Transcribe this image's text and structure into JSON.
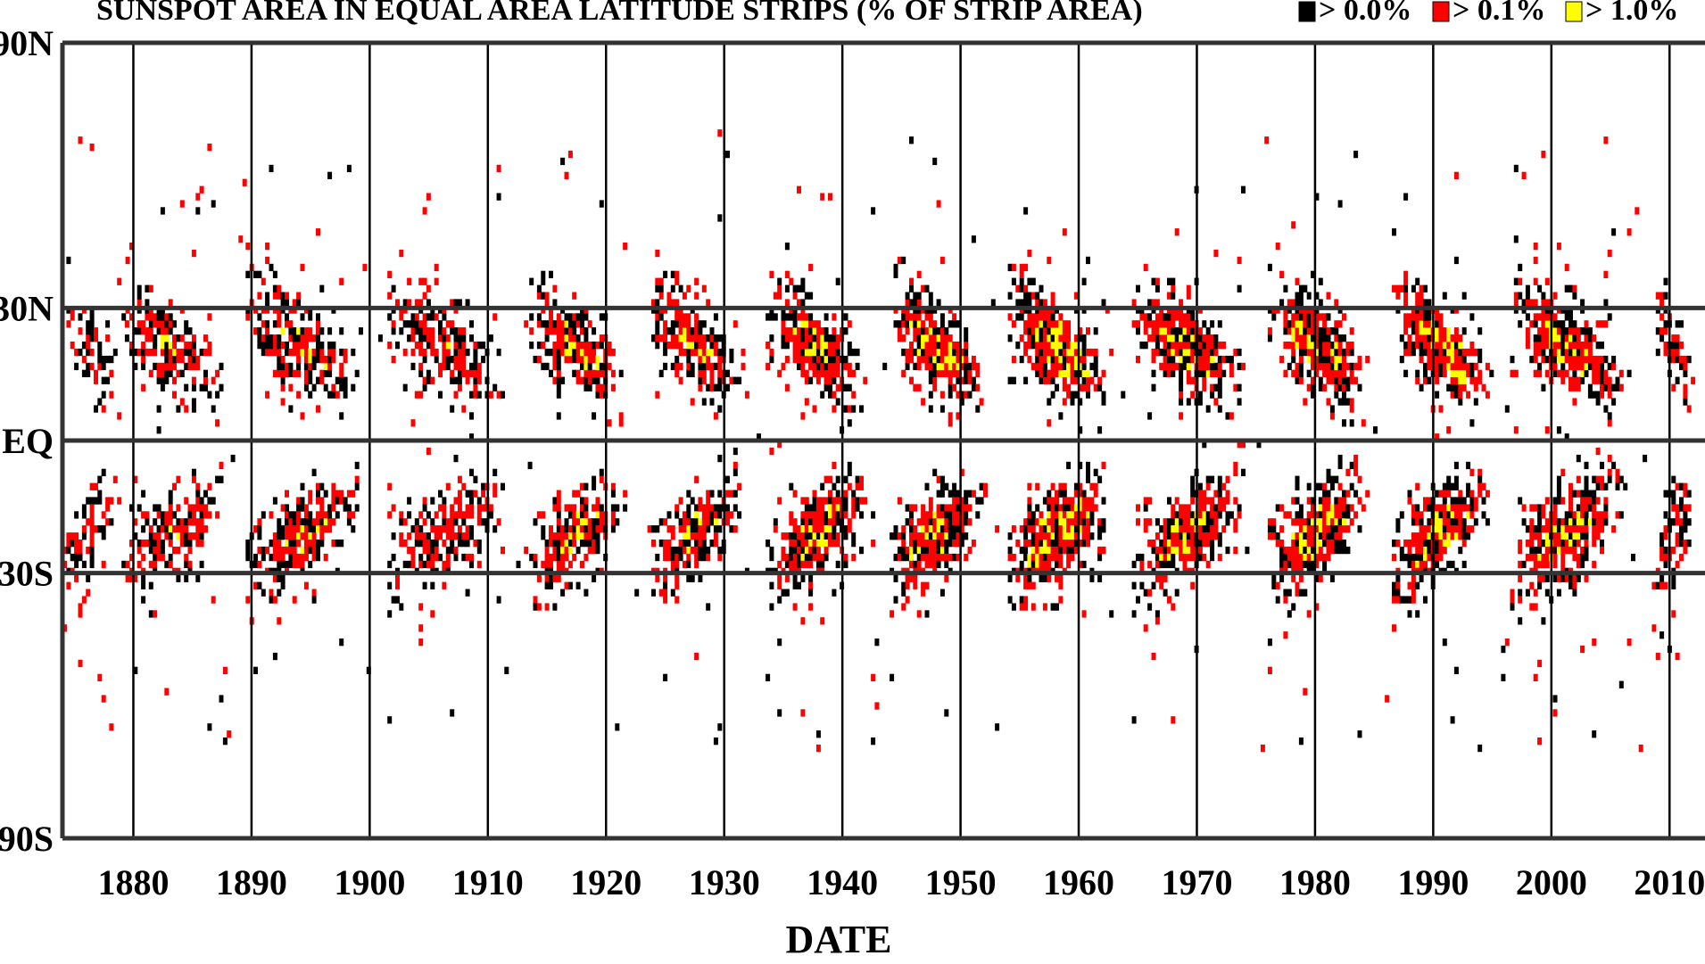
{
  "chart_data": {
    "type": "heatmap",
    "title": "SUNSPOT AREA IN EQUAL AREA LATITUDE STRIPS (% OF STRIP AREA)",
    "xlabel": "DATE",
    "ylabel": "",
    "xlim": [
      1874,
      2013
    ],
    "ylim": [
      -90,
      90
    ],
    "x_ticks": [
      1880,
      1890,
      1900,
      1910,
      1920,
      1930,
      1940,
      1950,
      1960,
      1970,
      1980,
      1990,
      2000,
      2010
    ],
    "x_tick_labels": [
      "1880",
      "1890",
      "1900",
      "1910",
      "1920",
      "1930",
      "1940",
      "1950",
      "1960",
      "1970",
      "1980",
      "1990",
      "2000",
      "2010"
    ],
    "y_ticks": [
      90,
      30,
      0,
      -30,
      -90
    ],
    "y_tick_labels": [
      "90N",
      "30N",
      "EQ",
      "30S",
      "90S"
    ],
    "grid": true,
    "legend_position": "top-right",
    "legend": [
      {
        "label": "> 0.0%",
        "color": "#000000"
      },
      {
        "label": "> 0.1%",
        "color": "#ff0000"
      },
      {
        "label": "> 1.0%",
        "color": "#ffff00"
      }
    ],
    "cycles": [
      {
        "start": 1874.0,
        "end": 1879.5,
        "intensity": 0.5
      },
      {
        "start": 1879.0,
        "end": 1889.5,
        "intensity": 0.65
      },
      {
        "start": 1889.5,
        "end": 1901.5,
        "intensity": 0.7
      },
      {
        "start": 1901.5,
        "end": 1913.5,
        "intensity": 0.6
      },
      {
        "start": 1913.5,
        "end": 1923.5,
        "intensity": 0.75
      },
      {
        "start": 1923.5,
        "end": 1933.5,
        "intensity": 0.75
      },
      {
        "start": 1933.5,
        "end": 1944.0,
        "intensity": 0.85
      },
      {
        "start": 1944.0,
        "end": 1954.0,
        "intensity": 0.9
      },
      {
        "start": 1954.0,
        "end": 1964.5,
        "intensity": 1.0
      },
      {
        "start": 1964.5,
        "end": 1976.0,
        "intensity": 0.85
      },
      {
        "start": 1976.0,
        "end": 1986.5,
        "intensity": 0.95
      },
      {
        "start": 1986.5,
        "end": 1996.5,
        "intensity": 0.95
      },
      {
        "start": 1996.5,
        "end": 2008.5,
        "intensity": 0.85
      },
      {
        "start": 2008.5,
        "end": 2013.0,
        "intensity": 0.55
      }
    ]
  }
}
